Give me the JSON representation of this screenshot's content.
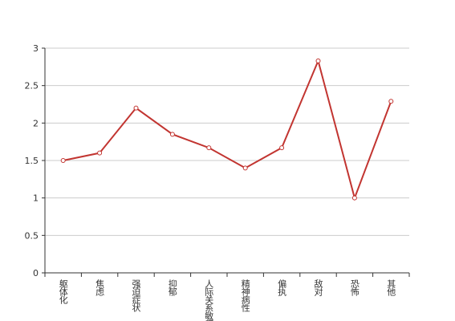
{
  "chart_data": {
    "type": "line",
    "categories": [
      "躯体化",
      "焦虑",
      "强迫症状",
      "抑郁",
      "人际关系敏感",
      "精神病性",
      "偏执",
      "敌对",
      "恐怖",
      "其他"
    ],
    "values": [
      1.5,
      1.6,
      2.2,
      1.85,
      1.67,
      1.4,
      1.67,
      2.83,
      1.0,
      2.29
    ],
    "color": "#c23531",
    "ylim": [
      0,
      3
    ],
    "yticks": [
      0,
      0.5,
      1,
      1.5,
      2,
      2.5,
      3
    ],
    "grid": true
  }
}
